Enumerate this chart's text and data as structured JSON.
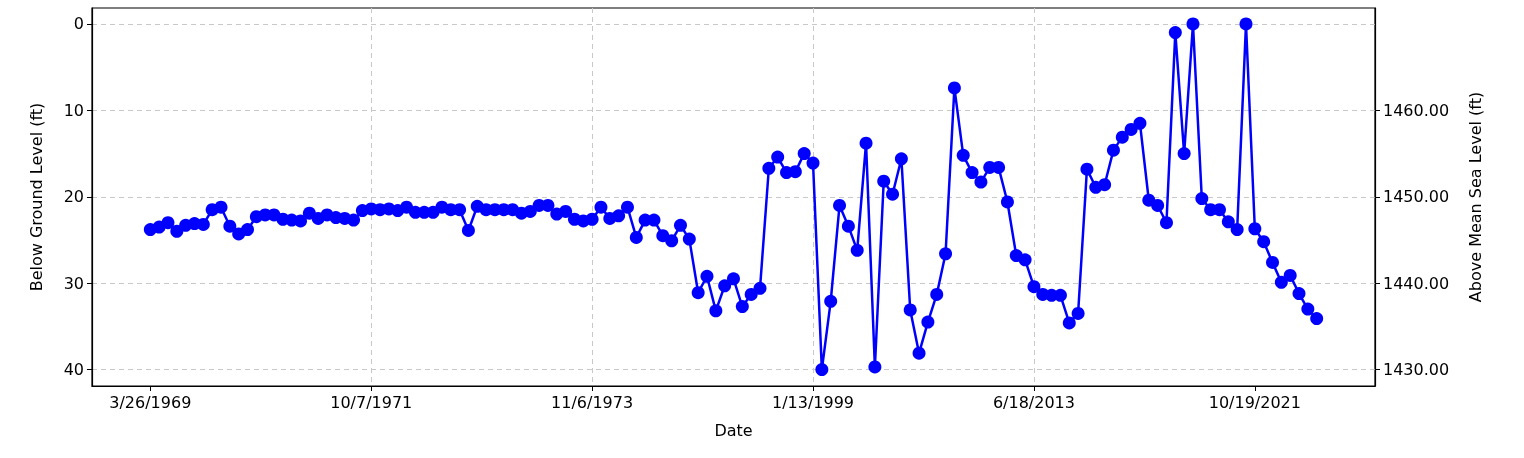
{
  "chart_data": {
    "type": "line",
    "xlabel": "Date",
    "ylabel": "Below Ground Level (ft)",
    "y2label": "Above Mean Sea Level (ft)",
    "categories": [
      "3/26/1969",
      null,
      null,
      null,
      null,
      null,
      null,
      null,
      null,
      null,
      null,
      null,
      null,
      null,
      null,
      null,
      null,
      null,
      null,
      null,
      null,
      null,
      null,
      null,
      null,
      "10/7/1971",
      null,
      null,
      null,
      null,
      null,
      null,
      null,
      null,
      null,
      null,
      null,
      null,
      null,
      null,
      null,
      null,
      null,
      null,
      null,
      null,
      null,
      null,
      null,
      null,
      "11/6/1973",
      null,
      null,
      null,
      null,
      null,
      null,
      null,
      null,
      null,
      null,
      null,
      null,
      null,
      null,
      null,
      null,
      null,
      null,
      null,
      null,
      null,
      null,
      null,
      null,
      "1/13/1999",
      null,
      null,
      null,
      null,
      null,
      null,
      null,
      null,
      null,
      null,
      null,
      null,
      null,
      null,
      null,
      null,
      null,
      null,
      null,
      null,
      null,
      null,
      null,
      null,
      "6/18/2013",
      null,
      null,
      null,
      null,
      null,
      null,
      null,
      null,
      null,
      null,
      null,
      null,
      null,
      null,
      null,
      null,
      null,
      null,
      null,
      null,
      null,
      null,
      null,
      null,
      "10/19/2021",
      null,
      null,
      null,
      null,
      null,
      null,
      null
    ],
    "series": [
      {
        "color": "#0000ff",
        "values": [
          23.8,
          23.5,
          23.0,
          24.0,
          23.3,
          23.1,
          23.2,
          21.5,
          21.2,
          23.4,
          24.3,
          23.8,
          22.3,
          22.1,
          22.1,
          22.6,
          22.7,
          22.8,
          21.9,
          22.5,
          22.1,
          22.4,
          22.5,
          22.7,
          21.6,
          21.4,
          21.5,
          21.4,
          21.6,
          21.2,
          21.8,
          21.8,
          21.8,
          21.2,
          21.5,
          21.5,
          23.9,
          21.1,
          21.5,
          21.5,
          21.5,
          21.5,
          21.9,
          21.7,
          21.0,
          21.0,
          22.0,
          21.7,
          22.6,
          22.8,
          22.6,
          21.2,
          22.5,
          22.2,
          21.2,
          24.7,
          22.7,
          22.7,
          24.5,
          25.1,
          23.3,
          24.9,
          31.1,
          29.2,
          33.2,
          30.3,
          29.5,
          32.7,
          31.3,
          30.6,
          16.7,
          15.4,
          17.2,
          17.1,
          15.0,
          16.1,
          40.0,
          32.1,
          21.0,
          23.4,
          26.2,
          13.8,
          39.7,
          18.2,
          19.7,
          15.6,
          33.1,
          38.1,
          34.5,
          31.3,
          26.6,
          7.4,
          15.2,
          17.2,
          18.3,
          16.6,
          16.6,
          20.6,
          26.8,
          27.3,
          30.4,
          31.3,
          31.4,
          31.4,
          34.6,
          33.5,
          16.8,
          18.9,
          18.6,
          14.6,
          13.1,
          12.2,
          11.5,
          20.4,
          21.0,
          23.0,
          1.0,
          15.0,
          0.0,
          20.2,
          21.5,
          21.5,
          22.9,
          23.8,
          0.0,
          23.7,
          25.2,
          27.6,
          29.9,
          29.1,
          31.2,
          33.0,
          34.1
        ]
      }
    ],
    "ylim": [
      41.9,
      -1.85
    ],
    "yticks": [
      0,
      10,
      20,
      30,
      40
    ],
    "y2lim": [
      1428.1,
      1471.85
    ],
    "y2ticks": [
      {
        "value": 1430,
        "label": "1430.00"
      },
      {
        "value": 1440,
        "label": "1440.00"
      },
      {
        "value": 1450,
        "label": "1450.00"
      },
      {
        "value": 1460,
        "label": "1460.00"
      }
    ],
    "grid": true,
    "marker": "circle",
    "line_style": "solid"
  }
}
